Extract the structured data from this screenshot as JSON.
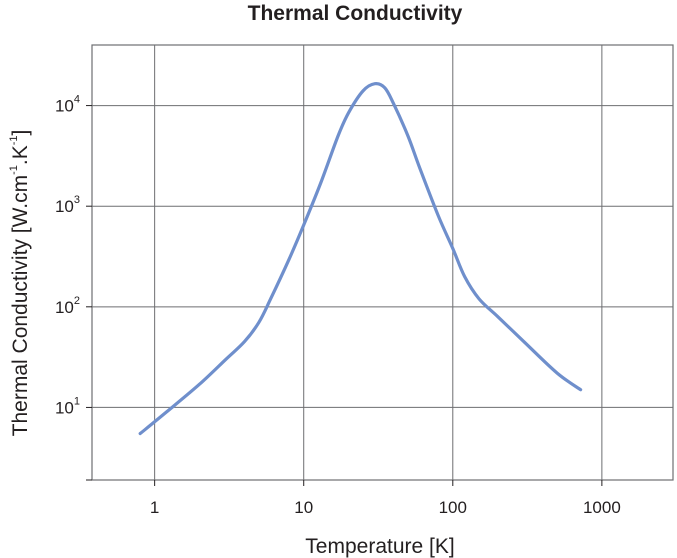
{
  "chart_data": {
    "type": "line",
    "title": "Thermal Conductivity",
    "xlabel": "Temperature [K]",
    "ylabel": {
      "prefix": "Thermal Conductivity [W.cm",
      "exp1": "-1",
      "middle": ".K",
      "exp2": "-1",
      "suffix": "]"
    },
    "xscale": "log",
    "yscale": "log",
    "xlim": [
      0.38,
      3000
    ],
    "ylim": [
      1.9,
      40000
    ],
    "grid": true,
    "x_ticks": [
      {
        "value": 1,
        "label": "1"
      },
      {
        "value": 10,
        "label": "10"
      },
      {
        "value": 100,
        "label": "100"
      },
      {
        "value": 1000,
        "label": "1000"
      }
    ],
    "y_ticks": [
      {
        "value": 10,
        "base": "10",
        "exp": "1"
      },
      {
        "value": 100,
        "base": "10",
        "exp": "2"
      },
      {
        "value": 1000,
        "base": "10",
        "exp": "3"
      },
      {
        "value": 10000,
        "base": "10",
        "exp": "4"
      }
    ],
    "series": [
      {
        "name": "Thermal Conductivity",
        "color": "#6f8fcc",
        "x": [
          0.8,
          1.2,
          2,
          3,
          4,
          5,
          6,
          8,
          10,
          13,
          17,
          20,
          25,
          30,
          35,
          40,
          50,
          60,
          80,
          100,
          120,
          150,
          200,
          300,
          500,
          720
        ],
        "y": [
          5.5,
          9,
          17,
          30,
          45,
          70,
          120,
          300,
          650,
          1700,
          5000,
          8500,
          14000,
          16500,
          15000,
          10500,
          5000,
          2400,
          800,
          380,
          200,
          120,
          80,
          45,
          22,
          15
        ]
      }
    ]
  }
}
